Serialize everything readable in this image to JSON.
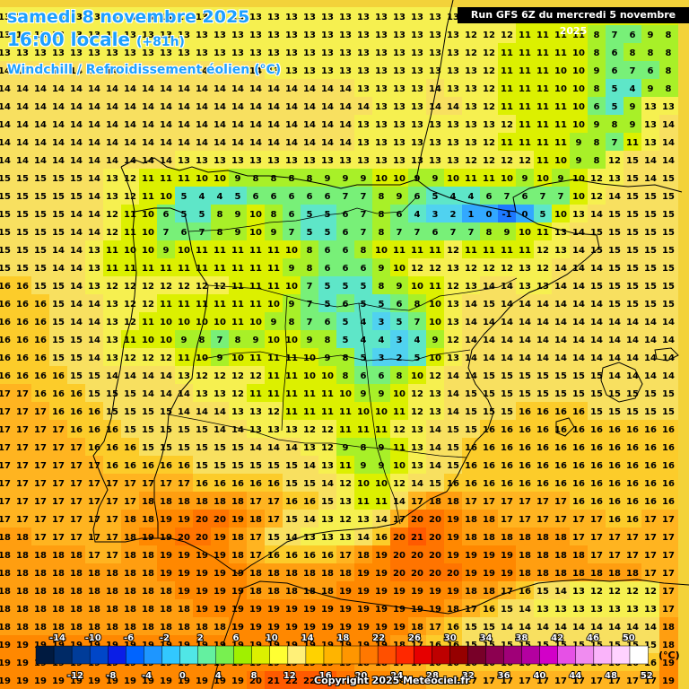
{
  "header": {
    "date_line": "samedi 8 novembre 2025",
    "time_line": "16:00 locale",
    "time_offset": "(+81h)",
    "variable": "Windchill / Refroidissement éolien (°C)",
    "run": "Run GFS 6Z du mercredi 5 novembre 2025"
  },
  "footer": {
    "copyright": "Copyright 2025 Meteociel.fr",
    "unit": "(°C)"
  },
  "legend": {
    "top_labels": [
      "-14",
      "-10",
      "-6",
      "-2",
      "2",
      "6",
      "10",
      "14",
      "18",
      "22",
      "26",
      "30",
      "34",
      "38",
      "42",
      "46",
      "50"
    ],
    "bottom_labels": [
      "-12",
      "-8",
      "-4",
      "0",
      "4",
      "8",
      "12",
      "16",
      "20",
      "24",
      "28",
      "32",
      "36",
      "40",
      "44",
      "48",
      "52"
    ],
    "colors": [
      "#001a40",
      "#002a66",
      "#003c99",
      "#0046c8",
      "#0a1ee6",
      "#0064ff",
      "#1e96ff",
      "#32c8ff",
      "#50e6e6",
      "#64f0a0",
      "#78f050",
      "#a0f000",
      "#dcf000",
      "#ffff32",
      "#fff078",
      "#ffd200",
      "#ffb400",
      "#ff9600",
      "#ff7800",
      "#ff5000",
      "#ff2800",
      "#e60000",
      "#be0000",
      "#960000",
      "#780028",
      "#8c0050",
      "#a00078",
      "#b400a0",
      "#d200c8",
      "#e650e6",
      "#f08cf0",
      "#fab4fa",
      "#ffd2ff",
      "#ffffff"
    ]
  },
  "map_data": {
    "region": "Iberian Peninsula",
    "grid_rows": [
      "13 13 13 13 13 13 13 13 13 13 13 13 13 13 13 13 13 13 13 13 13 13 13 13 13 13 13 13 13 11 11 11 11 11 11 11 11 11",
      "13 13 13 13 13 13 13 13 13 13 13 13 13 13 13 13 13 13 13 13 13 13 13 13 13 13 12 12 12 11 11 11 11 8 7 6 9 8",
      "13 13 13 13 13 13 13 13 13 13 13 13 13 13 13 13 13 13 13 13 13 13 13 13 13 13 12 12 11 11 11 11 10 8 6 8 8 8",
      "14 14 14 14 14 14 14 14 14 14 14 14 14 14 14 13 13 13 13 13 13 13 13 13 13 13 13 12 11 11 11 10 10 9 6 7 6 8",
      "14 14 14 14 14 14 14 14 14 14 14 14 14 14 14 14 14 14 14 14 13 13 13 13 14 13 13 12 11 11 11 10 10 8 5 4 9 8",
      "14 14 14 14 14 14 14 14 14 14 14 14 14 14 14 14 14 14 14 14 14 13 13 13 14 14 13 12 11 11 11 11 10 6 5 9 13 13",
      "14 14 14 14 14 14 14 14 14 14 14 14 14 14 14 14 14 14 14 14 13 13 13 13 13 13 13 13 12 11 11 11 10 9 8 9 13 14",
      "14 14 14 14 14 14 14 14 14 14 14 14 14 14 14 14 14 14 14 14 13 13 13 13 13 13 13 12 11 11 11 11 9 8 7 11 13 14",
      "14 14 14 14 14 14 14 14 14 14 13 13 13 13 13 13 13 13 13 13 13 13 13 13 13 13 12 12 12 12 11 10 9 8 12 15 14 14",
      "15 15 15 15 15 14 13 12 11 11 11 10 10 9 8 8 8 8 9 9 9 10 10 9 9 10 11 11 10 9 10 9 10 12 13 15 14 15",
      "15 15 15 15 15 14 13 12 11 10 5 4 4 5 6 6 6 6 6 7 7 8 9 6 5 4 4 6 7 6 7 7 10 12 14 15 15 15",
      "15 15 15 15 14 14 12 11 10 6 5 5 8 9 10 8 6 5 5 6 7 8 6 4 3 2 1 0 -1 0 5 10 13 14 15 15 15 15",
      "15 15 15 15 14 14 12 11 10 7 6 7 8 9 10 9 7 5 5 6 7 8 7 7 6 7 7 8 9 10 11 13 14 15 15 15 15 15",
      "15 15 15 14 14 13 11 10 10 9 10 11 11 11 11 11 10 8 6 6 8 10 11 11 11 12 11 11 11 11 12 13 14 15 15 15 15 15",
      "15 15 15 14 14 13 11 11 11 11 11 11 11 11 11 11 9 8 6 6 6 9 10 12 12 13 12 12 12 13 12 14 14 14 15 15 15 15",
      "16 16 15 15 14 13 12 12 12 12 12 12 12 11 11 11 10 7 5 5 5 8 9 10 11 12 13 14 14 13 13 14 14 15 15 15 15 15",
      "16 16 16 15 14 14 13 12 12 11 11 11 11 11 11 10 9 7 5 6 5 5 6 8 10 13 14 15 14 14 14 14 14 14 15 15 15 15",
      "16 16 16 15 14 14 13 12 11 10 10 10 10 11 10 9 8 7 6 5 4 3 5 7 10 13 14 14 14 14 14 14 14 14 14 14 14 14",
      "16 16 16 15 15 14 13 11 10 10 9 8 7 8 9 10 10 9 8 5 4 4 3 4 9 12 14 14 14 14 14 14 14 14 14 14 14 14",
      "16 16 16 15 15 14 13 12 12 12 11 10 9 10 11 11 11 10 9 8 5 3 2 5 10 13 14 14 14 14 14 14 14 14 14 14 14 14",
      "16 16 16 16 15 15 14 14 14 14 13 12 12 12 12 11 11 10 10 8 6 6 8 10 12 14 14 15 15 15 15 15 15 15 14 14 14 14",
      "17 17 16 16 16 15 15 15 14 14 14 13 13 12 11 11 11 11 11 10 9 9 10 12 13 14 15 15 15 15 15 15 15 15 15 15 15 15",
      "17 17 17 16 16 16 15 15 15 15 14 14 14 13 13 12 11 11 11 11 10 10 11 12 13 14 15 15 15 16 16 16 16 15 15 15 15 15",
      "17 17 17 17 16 16 16 15 15 15 15 15 14 14 13 13 13 12 12 11 11 11 12 13 14 15 15 16 16 16 16 16 16 16 16 16 16 16",
      "17 17 17 17 17 16 16 16 15 15 15 15 15 15 14 14 14 13 12 9 8 9 11 13 14 15 16 16 16 16 16 16 16 16 16 16 16 16",
      "17 17 17 17 17 17 16 16 16 16 16 15 15 15 15 15 15 14 13 11 9 9 10 13 14 15 16 16 16 16 16 16 16 16 16 16 16 16",
      "17 17 17 17 17 17 17 17 17 17 17 16 16 16 16 16 15 15 14 12 10 10 12 14 15 16 16 16 16 16 16 16 16 16 16 16 16 16",
      "17 17 17 17 17 17 17 17 18 18 18 18 18 18 17 17 16 16 15 13 11 11 14 17 18 18 17 17 17 17 17 17 16 16 16 16 16 16",
      "17 17 17 17 17 17 17 18 18 19 19 20 20 19 18 17 15 14 13 12 13 14 17 20 20 19 18 18 17 17 17 17 17 17 16 16 17 17",
      "18 18 17 17 17 17 17 18 19 19 20 20 19 18 17 15 14 13 13 13 14 16 20 21 20 19 18 18 18 18 18 18 17 17 17 17 17 17",
      "18 18 18 18 18 17 17 18 18 19 19 19 19 18 17 16 16 16 16 17 18 19 20 20 20 19 19 19 19 18 18 18 18 17 17 17 17 17",
      "18 18 18 18 18 18 18 18 18 19 19 19 19 19 18 18 18 18 18 18 19 19 20 20 20 20 19 19 19 18 18 18 18 18 18 18 17 17",
      "18 18 18 18 18 18 18 18 18 18 19 19 19 19 18 18 18 18 18 19 19 19 19 19 19 19 18 18 17 16 15 14 13 12 12 12 12 17",
      "18 18 18 18 18 18 18 18 18 18 18 19 19 19 19 19 19 19 19 19 19 19 19 19 19 18 17 16 15 14 13 13 13 13 13 13 13 17",
      "18 18 18 18 18 18 18 18 18 18 18 18 18 19 19 19 19 19 19 19 19 19 19 18 17 16 15 15 14 14 14 14 14 14 14 14 14 18",
      "19 19 19 19 19 19 19 19 19 19 19 19 19 19 19 19 19 19 19 19 19 19 18 17 16 16 15 15 15 15 15 15 15 15 15 15 15 18",
      "19 19 19 19 19 19 19 19 19 19 19 19 19 19 19 19 19 19 19 19 18 18 17 17 16 16 16 16 16 16 16 16 16 16 16 16 16 19",
      "19 19 19 19 19 19 19 19 19 19 19 19 19 19 20 21 22 22 21 20 19 19 18 18 17 17 17 17 17 17 17 17 17 17 17 17 17 19"
    ]
  }
}
